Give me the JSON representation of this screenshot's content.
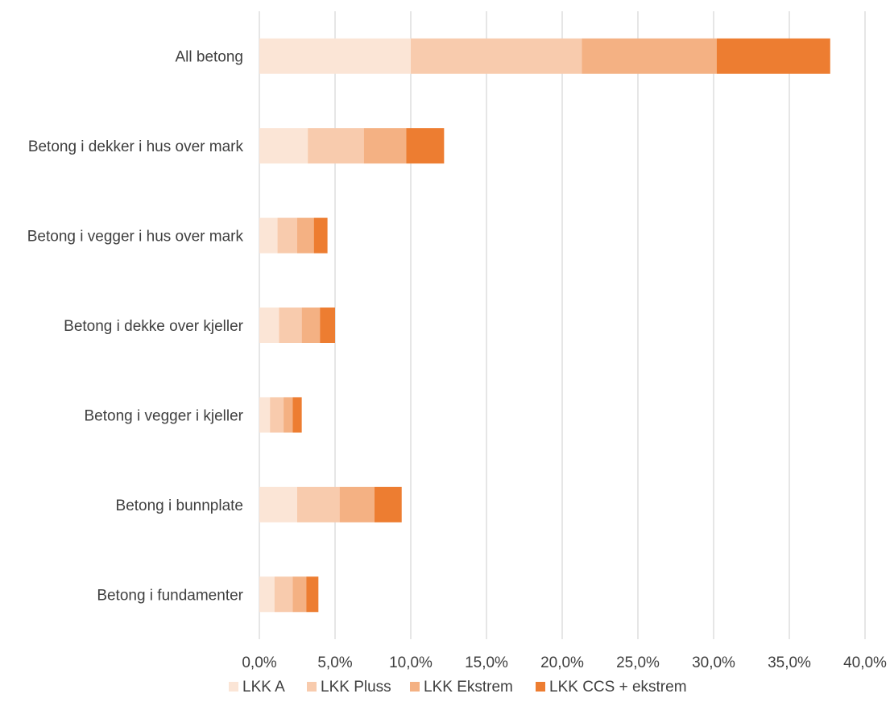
{
  "chart_data": {
    "type": "bar",
    "orientation": "horizontal",
    "stacked": true,
    "categories": [
      "All betong",
      "Betong i dekker i hus over mark",
      "Betong i vegger i hus over mark",
      "Betong i dekke over kjeller",
      "Betong i vegger i kjeller",
      "Betong i bunnplate",
      "Betong i fundamenter"
    ],
    "series": [
      {
        "name": "LKK A",
        "color": "#fbe5d6",
        "values": [
          10.0,
          3.2,
          1.2,
          1.3,
          0.7,
          2.5,
          1.0
        ]
      },
      {
        "name": "LKK Pluss",
        "color": "#f8cbad",
        "values": [
          11.3,
          3.7,
          1.3,
          1.5,
          0.9,
          2.8,
          1.2
        ]
      },
      {
        "name": "LKK Ekstrem",
        "color": "#f4b183",
        "values": [
          8.9,
          2.8,
          1.1,
          1.2,
          0.6,
          2.3,
          0.9
        ]
      },
      {
        "name": "LKK CCS + ekstrem",
        "color": "#ed7d31",
        "values": [
          7.5,
          2.5,
          0.9,
          1.0,
          0.6,
          1.8,
          0.8
        ]
      }
    ],
    "xlim": [
      0,
      40
    ],
    "x_ticks": [
      "0,0%",
      "5,0%",
      "10,0%",
      "15,0%",
      "20,0%",
      "25,0%",
      "30,0%",
      "35,0%",
      "40,0%"
    ],
    "grid": true,
    "legend_position": "bottom",
    "title": "",
    "xlabel": "",
    "ylabel": ""
  }
}
